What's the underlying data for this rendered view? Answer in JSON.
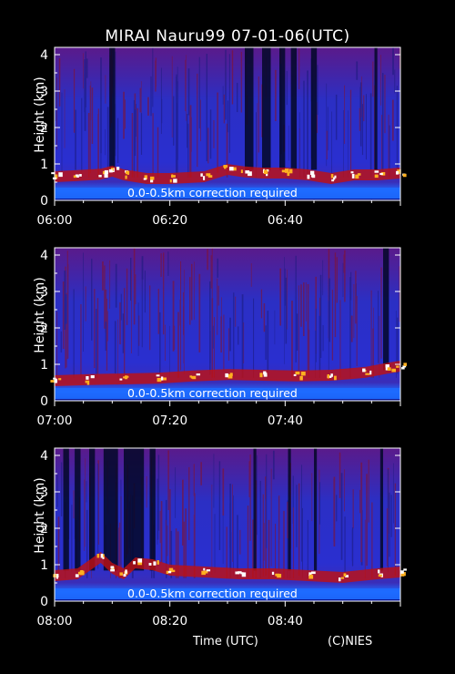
{
  "title": "MIRAI Nauru99 07-01-06(UTC)",
  "footer": {
    "xlabel": "Time (UTC)",
    "credit": "(C)NIES"
  },
  "colors": {
    "background": "#000000",
    "axes": "#ffffff",
    "signal_low": "#2a2fd0",
    "signal_mid": "#c01010",
    "signal_high": "#ffffff",
    "near_surface": "#1e6bff"
  },
  "chart_data": [
    {
      "type": "heatmap",
      "ylabel": "Height (km)",
      "ylim": [
        0,
        4.2
      ],
      "yticks": [
        0,
        1,
        2,
        3,
        4
      ],
      "xlim_minutes": [
        0,
        60
      ],
      "xtick_labels": [
        "06:00",
        "06:20",
        "06:40"
      ],
      "xtick_minutes": [
        0,
        20,
        40
      ],
      "annotation": "0.0-0.5km correction required",
      "cloud_base_km": [
        [
          0,
          0.65
        ],
        [
          4,
          0.68
        ],
        [
          8,
          0.72
        ],
        [
          10,
          0.8
        ],
        [
          12,
          0.7
        ],
        [
          16,
          0.6
        ],
        [
          20,
          0.6
        ],
        [
          26,
          0.65
        ],
        [
          30,
          0.85
        ],
        [
          33,
          0.78
        ],
        [
          36,
          0.75
        ],
        [
          40,
          0.75
        ],
        [
          44,
          0.7
        ],
        [
          48,
          0.6
        ],
        [
          52,
          0.7
        ],
        [
          56,
          0.7
        ],
        [
          60,
          0.75
        ]
      ],
      "dark_columns_minutes": [
        [
          9.5,
          10.5
        ],
        [
          33,
          34.5
        ],
        [
          36,
          37.5
        ],
        [
          39,
          40
        ],
        [
          41,
          42
        ],
        [
          44.5,
          45.5
        ],
        [
          55.5,
          56
        ]
      ]
    },
    {
      "type": "heatmap",
      "ylabel": "Height (km)",
      "ylim": [
        0,
        4.2
      ],
      "yticks": [
        0,
        1,
        2,
        3,
        4
      ],
      "xlim_minutes": [
        0,
        60
      ],
      "xtick_labels": [
        "07:00",
        "07:20",
        "07:40"
      ],
      "xtick_minutes": [
        0,
        20,
        40
      ],
      "annotation": "0.0-0.5km correction required",
      "cloud_base_km": [
        [
          0,
          0.55
        ],
        [
          6,
          0.58
        ],
        [
          12,
          0.6
        ],
        [
          18,
          0.62
        ],
        [
          24,
          0.68
        ],
        [
          30,
          0.72
        ],
        [
          36,
          0.7
        ],
        [
          42,
          0.68
        ],
        [
          48,
          0.7
        ],
        [
          54,
          0.78
        ],
        [
          58,
          0.9
        ],
        [
          60,
          0.95
        ]
      ],
      "dark_columns_minutes": [
        [
          57,
          58
        ]
      ]
    },
    {
      "type": "heatmap",
      "ylabel": "Height (km)",
      "ylim": [
        0,
        4.2
      ],
      "yticks": [
        0,
        1,
        2,
        3,
        4
      ],
      "xlim_minutes": [
        0,
        60
      ],
      "xtick_labels": [
        "08:00",
        "08:20",
        "08:40"
      ],
      "xtick_minutes": [
        0,
        20,
        40
      ],
      "annotation": "0.0-0.5km correction required",
      "cloud_base_km": [
        [
          0,
          0.7
        ],
        [
          4,
          0.75
        ],
        [
          8,
          1.2
        ],
        [
          10,
          0.9
        ],
        [
          12,
          0.75
        ],
        [
          14,
          1.05
        ],
        [
          17,
          1.0
        ],
        [
          20,
          0.85
        ],
        [
          26,
          0.8
        ],
        [
          32,
          0.75
        ],
        [
          38,
          0.75
        ],
        [
          44,
          0.7
        ],
        [
          50,
          0.65
        ],
        [
          56,
          0.75
        ],
        [
          60,
          0.8
        ]
      ],
      "dark_columns_minutes": [
        [
          1.5,
          2.5
        ],
        [
          3.5,
          4.5
        ],
        [
          6,
          7
        ],
        [
          8.5,
          11
        ],
        [
          12,
          15.5
        ],
        [
          16.5,
          17.5
        ],
        [
          34.5,
          35
        ],
        [
          40.5,
          41
        ],
        [
          45,
          45.5
        ],
        [
          56.5,
          57
        ]
      ]
    }
  ]
}
